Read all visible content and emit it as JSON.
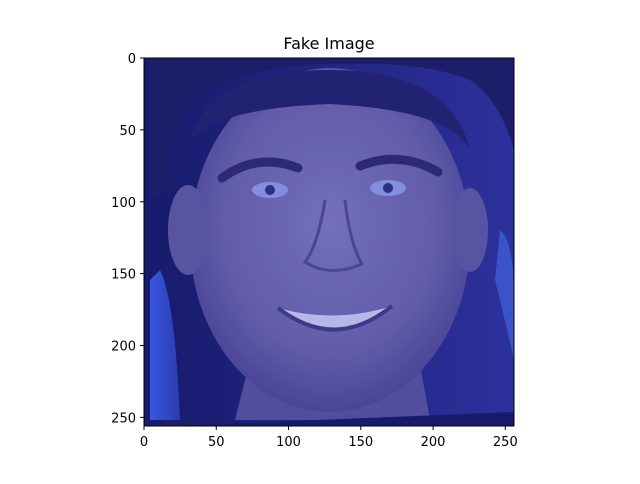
{
  "chart_data": {
    "type": "heatmap",
    "title": "Fake Image",
    "xlabel": "",
    "ylabel": "",
    "xlim": [
      0,
      256
    ],
    "ylim": [
      256,
      0
    ],
    "xticks": [
      0,
      50,
      100,
      150,
      200,
      250
    ],
    "yticks": [
      0,
      50,
      100,
      150,
      200,
      250
    ],
    "grid": false,
    "image": {
      "subject": "portrait",
      "tint": "#4a4fa8",
      "background": "#1c1f7a"
    }
  }
}
